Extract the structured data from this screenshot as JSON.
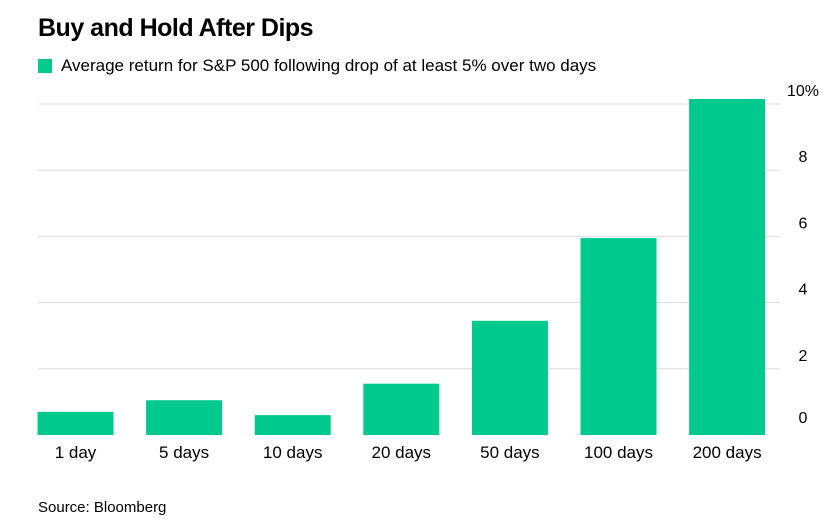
{
  "chart_data": {
    "type": "bar",
    "title": "Buy and Hold After Dips",
    "categories": [
      "1 day",
      "5 days",
      "10 days",
      "20 days",
      "50 days",
      "100 days",
      "200 days"
    ],
    "series": [
      {
        "name": "Average return for S&P 500 following drop of at least 5% over two days",
        "values": [
          0.7,
          1.05,
          0.6,
          1.55,
          3.45,
          5.95,
          10.15
        ]
      }
    ],
    "xlabel": "",
    "ylabel": "",
    "ylim": [
      0,
      10
    ],
    "yticks": [
      0,
      2,
      4,
      6,
      8,
      10
    ],
    "ytick_labels": [
      "0",
      "2",
      "4",
      "6",
      "8",
      "10%"
    ],
    "grid": true,
    "y_axis_side": "right",
    "legend_position": "top-left",
    "bar_color": "#00c98d",
    "source": "Source: Bloomberg"
  }
}
